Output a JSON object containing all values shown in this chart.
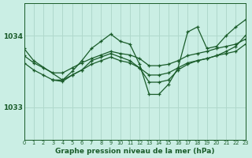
{
  "background_color": "#caeee4",
  "grid_color": "#b0d8cc",
  "line_color": "#1a5c2a",
  "xlabel": "Graphe pression niveau de la mer (hPa)",
  "xlim": [
    0,
    23
  ],
  "ylim": [
    1032.55,
    1034.45
  ],
  "yticks": [
    1033,
    1034
  ],
  "xticks": [
    0,
    1,
    2,
    3,
    4,
    5,
    6,
    7,
    8,
    9,
    10,
    11,
    12,
    13,
    14,
    15,
    16,
    17,
    18,
    19,
    20,
    21,
    22,
    23
  ],
  "series": [
    {
      "x": [
        0,
        1,
        2,
        3,
        4,
        5,
        6,
        7,
        8,
        9,
        10,
        11,
        12,
        13,
        14,
        15,
        16,
        17,
        18,
        19,
        20,
        21,
        22,
        23
      ],
      "y": [
        1033.72,
        1033.62,
        1033.55,
        1033.48,
        1033.48,
        1033.55,
        1033.62,
        1033.68,
        1033.73,
        1033.78,
        1033.75,
        1033.73,
        1033.68,
        1033.58,
        1033.58,
        1033.6,
        1033.65,
        1033.72,
        1033.75,
        1033.78,
        1033.82,
        1033.85,
        1033.88,
        1033.95
      ]
    },
    {
      "x": [
        0,
        1,
        2,
        3,
        4,
        5,
        6,
        7,
        8,
        9,
        10,
        11,
        12,
        13,
        14,
        15,
        16,
        17,
        18,
        19,
        20,
        21,
        22,
        23
      ],
      "y": [
        1033.62,
        1033.52,
        1033.45,
        1033.38,
        1033.38,
        1033.45,
        1033.52,
        1033.6,
        1033.65,
        1033.7,
        1033.65,
        1033.62,
        1033.55,
        1033.45,
        1033.45,
        1033.48,
        1033.55,
        1033.62,
        1033.65,
        1033.68,
        1033.72,
        1033.75,
        1033.78,
        1033.88
      ]
    },
    {
      "x": [
        0,
        1,
        4,
        5,
        6,
        7,
        8,
        9,
        10,
        11,
        12,
        13,
        14,
        15,
        16,
        17,
        18,
        19,
        20,
        21,
        22,
        23
      ],
      "y": [
        1033.82,
        1033.65,
        1033.38,
        1033.5,
        1033.65,
        1033.82,
        1033.92,
        1034.02,
        1033.92,
        1033.88,
        1033.6,
        1033.18,
        1033.18,
        1033.32,
        1033.55,
        1034.05,
        1034.12,
        1033.82,
        1033.85,
        1034.0,
        1034.12,
        1034.22
      ]
    },
    {
      "x": [
        3,
        4,
        5,
        6,
        7,
        8,
        9,
        10,
        11,
        12,
        13,
        14,
        15,
        16,
        17,
        18,
        19,
        20,
        21,
        22,
        23
      ],
      "y": [
        1033.38,
        1033.36,
        1033.45,
        1033.52,
        1033.65,
        1033.7,
        1033.75,
        1033.7,
        1033.65,
        1033.55,
        1033.35,
        1033.35,
        1033.38,
        1033.52,
        1033.6,
        1033.65,
        1033.68,
        1033.72,
        1033.78,
        1033.85,
        1034.0
      ]
    }
  ]
}
